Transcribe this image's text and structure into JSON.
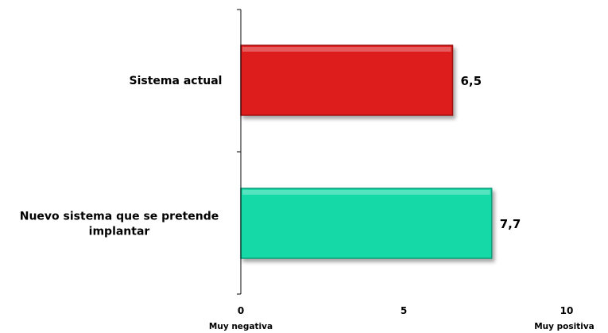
{
  "chart_data": {
    "type": "bar",
    "orientation": "horizontal",
    "categories": [
      [
        "Sistema actual"
      ],
      [
        "Nuevo sistema que se pretende",
        "implantar"
      ]
    ],
    "values": [
      6.5,
      7.7
    ],
    "value_labels": [
      "6,5",
      "7,7"
    ],
    "bar_colors": [
      "#dd1a1a",
      "#12d9a8"
    ],
    "bar_edge_colors": [
      "#9e1010",
      "#0a9c78"
    ],
    "xlim": [
      0,
      10
    ],
    "x_ticks": [
      0,
      5,
      10
    ],
    "x_tick_labels": [
      "0",
      "5",
      "10"
    ],
    "x_end_labels": {
      "min": "Muy negativa",
      "max": "Muy positiva"
    },
    "grid": false,
    "legend": "none",
    "title": "",
    "xlabel": "",
    "ylabel": ""
  }
}
